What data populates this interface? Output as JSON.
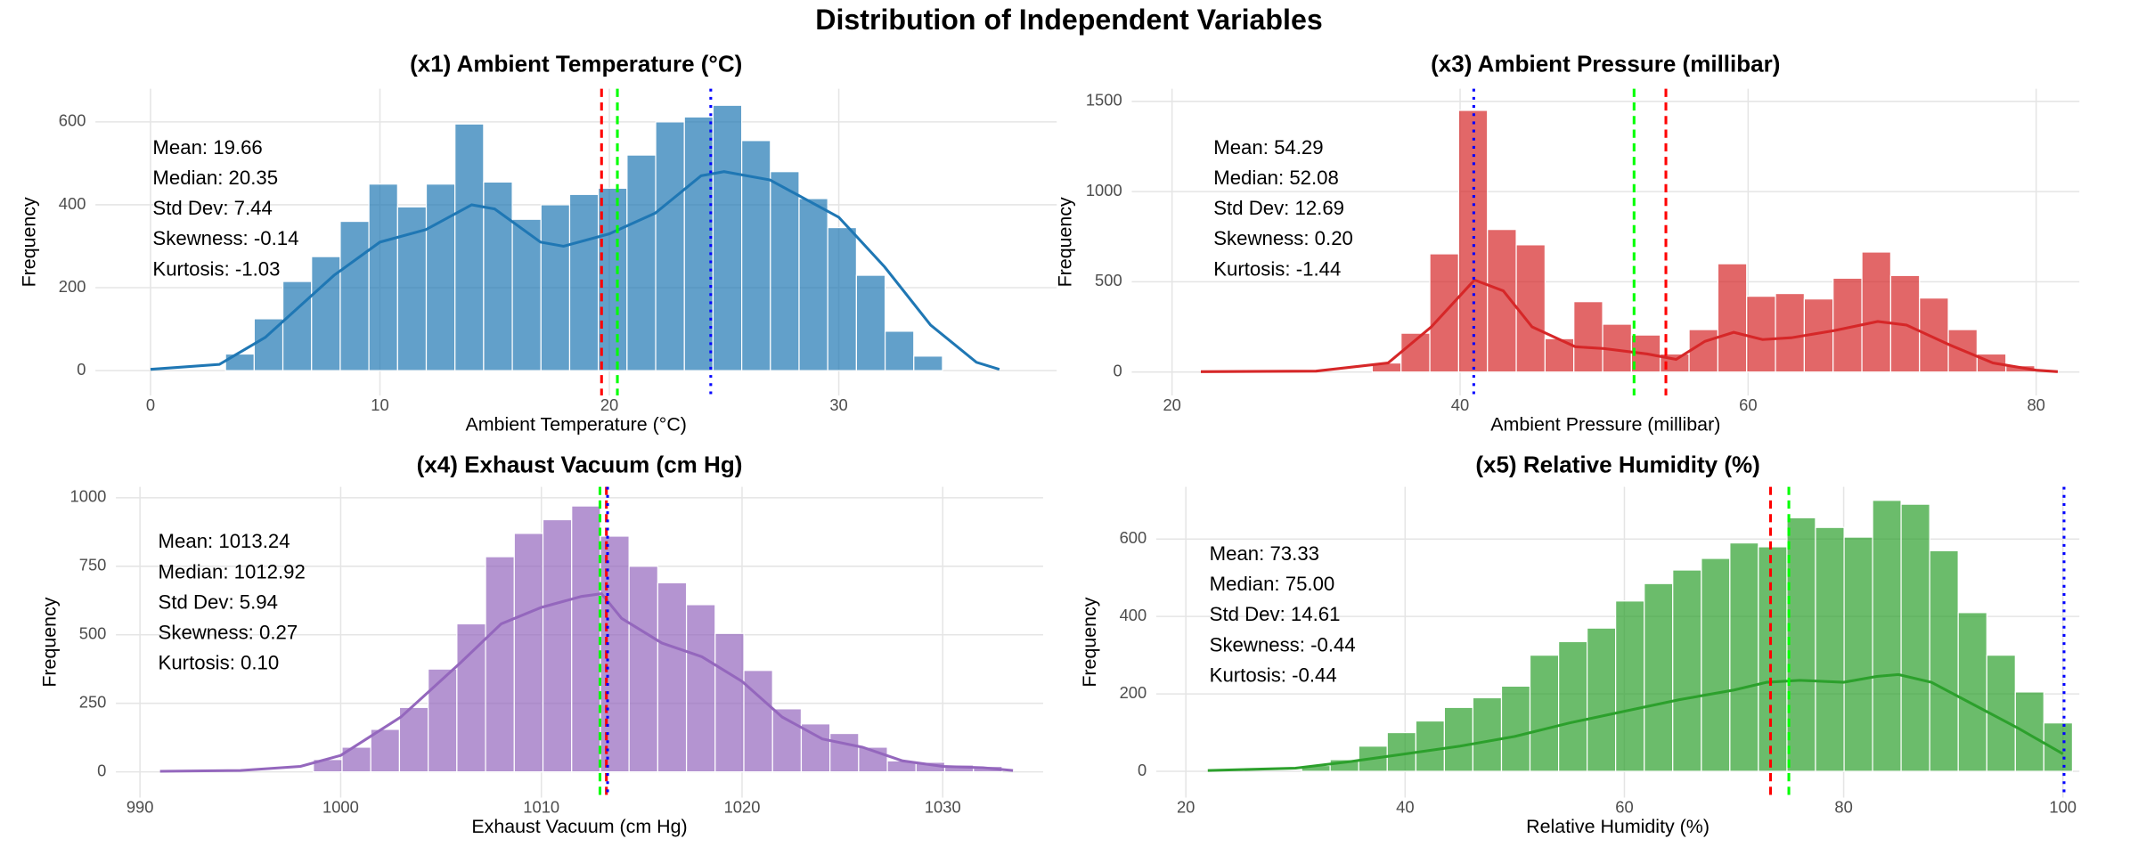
{
  "title": "Distribution of Independent Variables",
  "chart_data": [
    {
      "type": "histogram",
      "title": "(x1) Ambient Temperature (°C)",
      "x_label": "Ambient Temperature (°C)",
      "y_label": "Frequency",
      "color": "#1f77b4",
      "bins": [
        3.27,
        4.52,
        5.77,
        7.02,
        8.27,
        9.52,
        10.77,
        12.02,
        13.27,
        14.52,
        15.77,
        17.02,
        18.27,
        19.52,
        20.77,
        22.02,
        23.27,
        24.52,
        25.77,
        27.02,
        28.27,
        29.52,
        30.77,
        32.02,
        33.27,
        34.52
      ],
      "counts": [
        40,
        125,
        215,
        275,
        360,
        450,
        395,
        450,
        595,
        455,
        365,
        400,
        425,
        440,
        520,
        600,
        612,
        640,
        555,
        480,
        415,
        345,
        230,
        95,
        35
      ],
      "kde": {
        "x": [
          0,
          3,
          5,
          8,
          10,
          12,
          14,
          15,
          17,
          18,
          20,
          22,
          24,
          25,
          27,
          30,
          32,
          34,
          36,
          37
        ],
        "values": [
          3,
          15,
          80,
          230,
          310,
          340,
          400,
          390,
          310,
          300,
          330,
          380,
          470,
          480,
          460,
          370,
          250,
          110,
          20,
          3
        ]
      },
      "vlines": [
        {
          "value": 19.66,
          "color": "#ff0000",
          "style": "dashed"
        },
        {
          "value": 20.35,
          "color": "#00ff00",
          "style": "dashed"
        },
        {
          "value": 24.42,
          "color": "#0000ff",
          "style": "dotted"
        }
      ],
      "stats": [
        "Mean: 19.66",
        "Median: 20.35",
        "Std Dev: 7.44",
        "Skewness: -0.14",
        "Kurtosis: -1.03"
      ],
      "xlim": [
        -2.4,
        39.5
      ],
      "xticks": [
        0,
        10,
        20,
        30
      ],
      "ylim": [
        -60,
        680
      ],
      "yticks": [
        0,
        200,
        400,
        600
      ],
      "grid": true
    },
    {
      "type": "histogram",
      "title": "(x3) Ambient Pressure (millibar)",
      "x_label": "Ambient Pressure (millibar)",
      "y_label": "Frequency",
      "color": "#d62728",
      "bins": [
        33.9,
        35.9,
        37.9,
        39.9,
        41.9,
        43.9,
        45.9,
        47.9,
        49.9,
        51.9,
        53.9,
        55.9,
        57.9,
        59.9,
        61.9,
        63.9,
        65.9,
        67.9,
        69.9,
        71.9,
        73.9,
        75.9,
        77.9,
        79.9
      ],
      "counts": [
        50,
        215,
        655,
        1450,
        790,
        705,
        185,
        390,
        265,
        205,
        100,
        235,
        600,
        420,
        435,
        405,
        520,
        665,
        535,
        410,
        235,
        100,
        35
      ],
      "kde": {
        "x": [
          22,
          30,
          35,
          38,
          41,
          43,
          45,
          48,
          50,
          53,
          55,
          57,
          59,
          61,
          63,
          66,
          69,
          71,
          74,
          77,
          80,
          81.5
        ],
        "values": [
          2,
          5,
          50,
          250,
          510,
          450,
          250,
          140,
          130,
          100,
          70,
          170,
          220,
          180,
          190,
          230,
          280,
          260,
          150,
          50,
          10,
          2
        ]
      },
      "vlines": [
        {
          "value": 54.29,
          "color": "#ff0000",
          "style": "dashed"
        },
        {
          "value": 52.08,
          "color": "#00ff00",
          "style": "dashed"
        },
        {
          "value": 40.95,
          "color": "#0000ff",
          "style": "dotted"
        }
      ],
      "stats": [
        "Mean: 54.29",
        "Median: 52.08",
        "Std Dev: 12.69",
        "Skewness: 0.20",
        "Kurtosis: -1.44"
      ],
      "xlim": [
        17.2,
        83.0
      ],
      "xticks": [
        20,
        40,
        60,
        80
      ],
      "ylim": [
        -130,
        1570
      ],
      "yticks": [
        0,
        500,
        1000,
        1500
      ],
      "grid": true
    },
    {
      "type": "histogram",
      "title": "(x4) Exhaust Vacuum (cm Hg)",
      "x_label": "Exhaust Vacuum (cm Hg)",
      "y_label": "Frequency",
      "color": "#9467bd",
      "bins": [
        998.64,
        1000.07,
        1001.5,
        1002.93,
        1004.36,
        1005.79,
        1007.22,
        1008.65,
        1010.08,
        1011.51,
        1012.94,
        1014.37,
        1015.8,
        1017.23,
        1018.66,
        1020.09,
        1021.52,
        1022.95,
        1024.38,
        1025.81,
        1027.24,
        1028.67,
        1030.1,
        1031.53,
        1032.96
      ],
      "counts": [
        45,
        90,
        155,
        235,
        375,
        540,
        785,
        870,
        920,
        970,
        860,
        750,
        690,
        610,
        505,
        370,
        230,
        175,
        140,
        90,
        40,
        35,
        25,
        20
      ],
      "kde": {
        "x": [
          991,
          995,
          998,
          1000,
          1003,
          1006,
          1008,
          1010,
          1012,
          1013,
          1014,
          1016,
          1018,
          1020,
          1022,
          1024,
          1026,
          1028,
          1030,
          1032,
          1033.5
        ],
        "values": [
          2,
          5,
          20,
          60,
          200,
          400,
          540,
          600,
          640,
          650,
          560,
          470,
          420,
          330,
          200,
          120,
          90,
          40,
          20,
          15,
          5
        ]
      },
      "vlines": [
        {
          "value": 1013.24,
          "color": "#ff0000",
          "style": "dashed"
        },
        {
          "value": 1012.92,
          "color": "#00ff00",
          "style": "dashed"
        },
        {
          "value": 1013.3,
          "color": "#0000ff",
          "style": "dotted"
        }
      ],
      "stats": [
        "Mean: 1013.24",
        "Median: 1012.92",
        "Std Dev: 5.94",
        "Skewness: 0.27",
        "Kurtosis: 0.10"
      ],
      "xlim": [
        988.8,
        1035
      ],
      "xticks": [
        990,
        1000,
        1010,
        1020,
        1030
      ],
      "ylim": [
        -94,
        1040
      ],
      "yticks": [
        0,
        250,
        500,
        750,
        1000
      ],
      "grid": true
    },
    {
      "type": "histogram",
      "title": "(x5) Relative Humidity (%)",
      "x_label": "Relative Humidity (%)",
      "y_label": "Frequency",
      "color": "#2ca02c",
      "bins": [
        30.56,
        33.16,
        35.77,
        38.37,
        40.98,
        43.58,
        46.18,
        48.79,
        51.39,
        54.0,
        56.6,
        59.2,
        61.81,
        64.41,
        67.02,
        69.62,
        72.22,
        74.83,
        77.43,
        80.04,
        82.64,
        85.24,
        87.85,
        90.45,
        93.06,
        95.66,
        98.26,
        100.87
      ],
      "counts": [
        15,
        30,
        65,
        100,
        130,
        165,
        190,
        220,
        300,
        335,
        370,
        440,
        485,
        520,
        550,
        590,
        580,
        655,
        630,
        605,
        700,
        690,
        570,
        410,
        300,
        205,
        125
      ],
      "kde": {
        "x": [
          22,
          30,
          35,
          40,
          45,
          50,
          55,
          60,
          65,
          70,
          73,
          76,
          80,
          83,
          85,
          88,
          92,
          96,
          100
        ],
        "values": [
          2,
          8,
          25,
          45,
          65,
          90,
          125,
          155,
          185,
          210,
          230,
          235,
          230,
          245,
          250,
          230,
          170,
          110,
          45
        ]
      },
      "vlines": [
        {
          "value": 73.33,
          "color": "#ff0000",
          "style": "dashed"
        },
        {
          "value": 75.0,
          "color": "#00ff00",
          "style": "dashed"
        },
        {
          "value": 100.1,
          "color": "#0000ff",
          "style": "dotted"
        }
      ],
      "stats": [
        "Mean: 73.33",
        "Median: 75.00",
        "Std Dev: 14.61",
        "Skewness: -0.44",
        "Kurtosis: -0.44"
      ],
      "xlim": [
        17.3,
        101.5
      ],
      "xticks": [
        20,
        40,
        60,
        80,
        100
      ],
      "ylim": [
        -68,
        735
      ],
      "yticks": [
        0,
        200,
        400,
        600
      ],
      "grid": true
    }
  ]
}
